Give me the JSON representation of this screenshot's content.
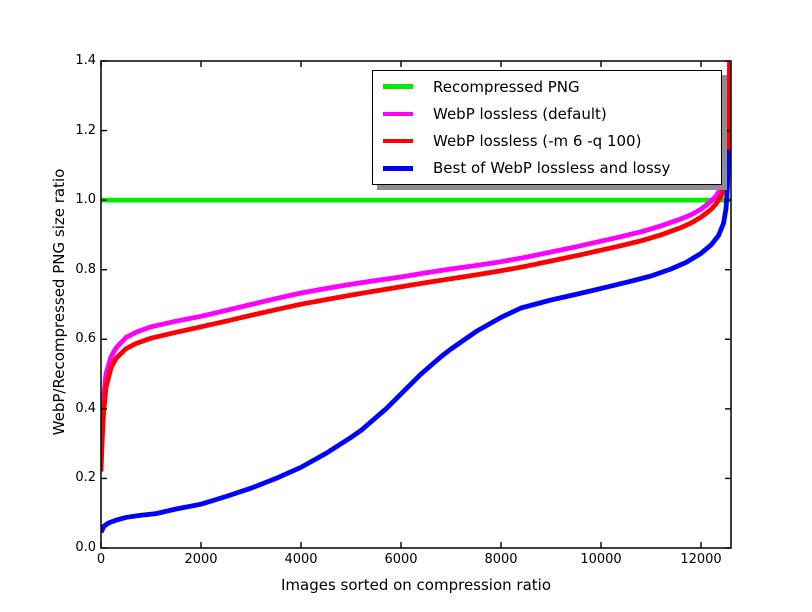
{
  "figure": {
    "background_color": "#ffffff",
    "axes_color": "#000000"
  },
  "chart_data": {
    "type": "line",
    "title": "",
    "xlabel": "Images sorted on compression ratio",
    "ylabel": "WebP/Recompressed PNG size ratio",
    "xlim": [
      0,
      12600
    ],
    "ylim": [
      0.0,
      1.4
    ],
    "x_ticks": [
      0,
      2000,
      4000,
      6000,
      8000,
      10000,
      12000
    ],
    "y_ticks": [
      0.0,
      0.2,
      0.4,
      0.6,
      0.8,
      1.0,
      1.2,
      1.4
    ],
    "grid": false,
    "legend": {
      "position": "upper right",
      "shadow": true
    },
    "series": [
      {
        "id": "recompressed-png",
        "name": "Recompressed PNG",
        "color": "#00ee00",
        "points": [
          [
            0,
            1.0
          ],
          [
            12600,
            1.0
          ]
        ]
      },
      {
        "id": "webp-lossless-default",
        "name": "WebP lossless (default)",
        "color": "#ff00ff",
        "points": [
          [
            0,
            0.28
          ],
          [
            20,
            0.36
          ],
          [
            50,
            0.43
          ],
          [
            100,
            0.5
          ],
          [
            200,
            0.55
          ],
          [
            300,
            0.575
          ],
          [
            500,
            0.605
          ],
          [
            700,
            0.62
          ],
          [
            1000,
            0.636
          ],
          [
            1500,
            0.652
          ],
          [
            2000,
            0.666
          ],
          [
            2500,
            0.683
          ],
          [
            3000,
            0.7
          ],
          [
            3500,
            0.717
          ],
          [
            4000,
            0.733
          ],
          [
            4500,
            0.746
          ],
          [
            5000,
            0.758
          ],
          [
            5500,
            0.769
          ],
          [
            6000,
            0.779
          ],
          [
            6500,
            0.791
          ],
          [
            7000,
            0.802
          ],
          [
            7500,
            0.812
          ],
          [
            8000,
            0.823
          ],
          [
            8500,
            0.836
          ],
          [
            9000,
            0.851
          ],
          [
            9500,
            0.866
          ],
          [
            10000,
            0.882
          ],
          [
            10400,
            0.895
          ],
          [
            10800,
            0.909
          ],
          [
            11200,
            0.926
          ],
          [
            11600,
            0.946
          ],
          [
            11800,
            0.958
          ],
          [
            12000,
            0.974
          ],
          [
            12200,
            0.997
          ],
          [
            12300,
            1.012
          ],
          [
            12400,
            1.034
          ],
          [
            12460,
            1.06
          ],
          [
            12510,
            1.1
          ],
          [
            12545,
            1.18
          ],
          [
            12570,
            1.4
          ]
        ]
      },
      {
        "id": "webp-lossless-m6-q100",
        "name": "WebP lossless (-m 6 -q 100)",
        "color": "#ff0000",
        "points": [
          [
            0,
            0.22
          ],
          [
            20,
            0.3
          ],
          [
            50,
            0.385
          ],
          [
            100,
            0.462
          ],
          [
            200,
            0.518
          ],
          [
            300,
            0.545
          ],
          [
            500,
            0.573
          ],
          [
            700,
            0.588
          ],
          [
            1000,
            0.603
          ],
          [
            1500,
            0.62
          ],
          [
            2000,
            0.636
          ],
          [
            2500,
            0.652
          ],
          [
            3000,
            0.669
          ],
          [
            3500,
            0.685
          ],
          [
            4000,
            0.701
          ],
          [
            4500,
            0.714
          ],
          [
            5000,
            0.727
          ],
          [
            5500,
            0.739
          ],
          [
            6000,
            0.751
          ],
          [
            6500,
            0.763
          ],
          [
            7000,
            0.774
          ],
          [
            7500,
            0.785
          ],
          [
            8000,
            0.797
          ],
          [
            8500,
            0.81
          ],
          [
            9000,
            0.825
          ],
          [
            9500,
            0.84
          ],
          [
            10000,
            0.856
          ],
          [
            10400,
            0.869
          ],
          [
            10800,
            0.883
          ],
          [
            11200,
            0.9
          ],
          [
            11600,
            0.921
          ],
          [
            11800,
            0.934
          ],
          [
            12000,
            0.951
          ],
          [
            12200,
            0.973
          ],
          [
            12300,
            0.989
          ],
          [
            12400,
            1.011
          ],
          [
            12460,
            1.035
          ],
          [
            12510,
            1.072
          ],
          [
            12550,
            1.15
          ],
          [
            12580,
            1.4
          ]
        ]
      },
      {
        "id": "best-of-webp-lossless-and-lossy",
        "name": "Best of WebP lossless and lossy",
        "color": "#0000ff",
        "points": [
          [
            0,
            0.045
          ],
          [
            60,
            0.063
          ],
          [
            150,
            0.072
          ],
          [
            300,
            0.08
          ],
          [
            500,
            0.088
          ],
          [
            800,
            0.094
          ],
          [
            1100,
            0.099
          ],
          [
            1500,
            0.112
          ],
          [
            2000,
            0.126
          ],
          [
            2500,
            0.148
          ],
          [
            3000,
            0.172
          ],
          [
            3500,
            0.2
          ],
          [
            4000,
            0.232
          ],
          [
            4500,
            0.272
          ],
          [
            5000,
            0.318
          ],
          [
            5200,
            0.338
          ],
          [
            5700,
            0.4
          ],
          [
            6000,
            0.443
          ],
          [
            6400,
            0.5
          ],
          [
            6800,
            0.55
          ],
          [
            7000,
            0.572
          ],
          [
            7500,
            0.622
          ],
          [
            8000,
            0.663
          ],
          [
            8400,
            0.69
          ],
          [
            9000,
            0.713
          ],
          [
            9400,
            0.726
          ],
          [
            9800,
            0.739
          ],
          [
            10200,
            0.753
          ],
          [
            10600,
            0.767
          ],
          [
            11000,
            0.782
          ],
          [
            11400,
            0.802
          ],
          [
            11700,
            0.821
          ],
          [
            12000,
            0.847
          ],
          [
            12200,
            0.871
          ],
          [
            12350,
            0.898
          ],
          [
            12450,
            0.933
          ],
          [
            12500,
            0.975
          ],
          [
            12530,
            1.04
          ],
          [
            12550,
            1.145
          ]
        ]
      }
    ]
  }
}
